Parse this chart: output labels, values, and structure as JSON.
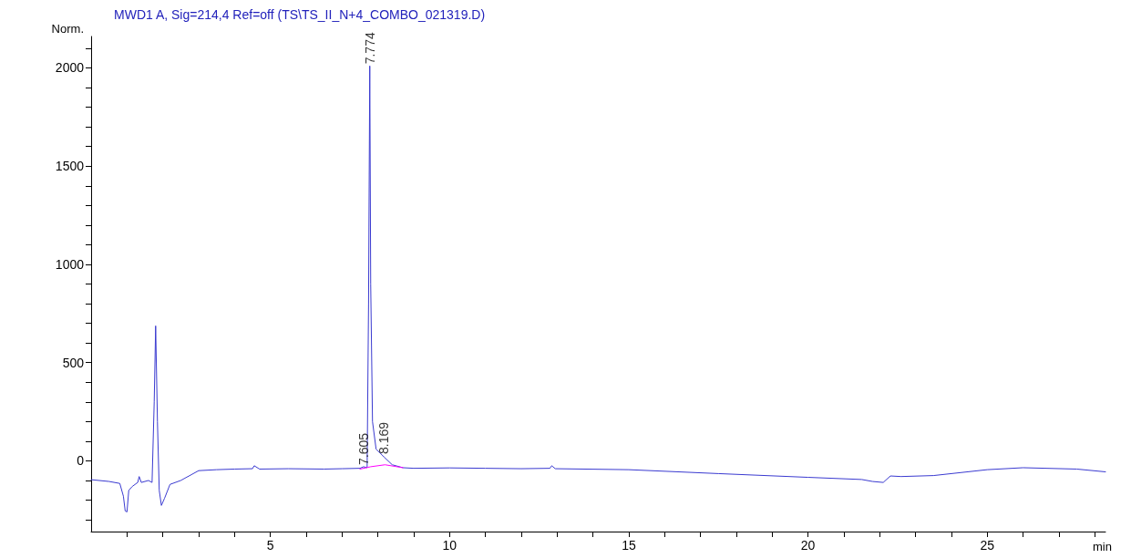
{
  "chart_data": {
    "type": "line",
    "title": "MWD1 A, Sig=214,4 Ref=off (TS\\TS_II_N+4_COMBO_021319.D)",
    "ylabel": "Norm.",
    "xlabel": "min",
    "xlim": [
      0,
      28.3
    ],
    "xticks": [
      {
        "value": 1,
        "label": null
      },
      {
        "value": 2,
        "label": null
      },
      {
        "value": 3,
        "label": null
      },
      {
        "value": 4,
        "label": null
      },
      5,
      {
        "value": 6,
        "label": null
      },
      {
        "value": 7,
        "label": null
      },
      {
        "value": 8,
        "label": null
      },
      {
        "value": 9,
        "label": null
      },
      10,
      {
        "value": 11,
        "label": null
      },
      {
        "value": 12,
        "label": null
      },
      {
        "value": 13,
        "label": null
      },
      {
        "value": 14,
        "label": null
      },
      15,
      {
        "value": 16,
        "label": null
      },
      {
        "value": 17,
        "label": null
      },
      {
        "value": 18,
        "label": null
      },
      {
        "value": 19,
        "label": null
      },
      20,
      {
        "value": 21,
        "label": null
      },
      {
        "value": 22,
        "label": null
      },
      {
        "value": 23,
        "label": null
      },
      {
        "value": 24,
        "label": null
      },
      25,
      {
        "value": 26,
        "label": null
      },
      {
        "value": 27,
        "label": null
      },
      {
        "value": 28,
        "label": null
      }
    ],
    "ylim": [
      -360,
      2160
    ],
    "yticks": [
      {
        "value": -300,
        "label": null
      },
      {
        "value": -200,
        "label": null
      },
      {
        "value": -100,
        "label": null
      },
      0,
      {
        "value": 100,
        "label": null
      },
      {
        "value": 200,
        "label": null
      },
      {
        "value": 300,
        "label": null
      },
      {
        "value": 400,
        "label": null
      },
      500,
      {
        "value": 600,
        "label": null
      },
      {
        "value": 700,
        "label": null
      },
      {
        "value": 800,
        "label": null
      },
      {
        "value": 900,
        "label": null
      },
      1000,
      {
        "value": 1100,
        "label": null
      },
      {
        "value": 1200,
        "label": null
      },
      {
        "value": 1300,
        "label": null
      },
      {
        "value": 1400,
        "label": null
      },
      1500,
      {
        "value": 1600,
        "label": null
      },
      {
        "value": 1700,
        "label": null
      },
      {
        "value": 1800,
        "label": null
      },
      {
        "value": 1900,
        "label": null
      },
      2000,
      {
        "value": 2100,
        "label": null
      }
    ],
    "grid": false,
    "marker": "none",
    "line_style": "solid",
    "series": [
      {
        "color": "#3a3ad0",
        "x": [
          0,
          0.5,
          0.8,
          0.9,
          0.95,
          1.0,
          1.05,
          1.15,
          1.3,
          1.34,
          1.4,
          1.6,
          1.7,
          1.76,
          1.8,
          1.85,
          1.9,
          1.96,
          2.05,
          2.2,
          2.5,
          3.0,
          3.5,
          4.0,
          4.5,
          4.55,
          4.7,
          5.5,
          6.5,
          7.0,
          7.5,
          7.6,
          7.7,
          7.74,
          7.774,
          7.8,
          7.85,
          7.95,
          8.169,
          8.4,
          8.7,
          9.0,
          10,
          11,
          12,
          12.8,
          12.85,
          12.95,
          15,
          17.5,
          20,
          21.5,
          21.8,
          22.1,
          22.3,
          22.6,
          23.5,
          25,
          26,
          27.5,
          28.3
        ],
        "values": [
          -96,
          -105,
          -115,
          -180,
          -255,
          -260,
          -150,
          -130,
          -110,
          -80,
          -110,
          -100,
          -110,
          300,
          687,
          200,
          -150,
          -227,
          -190,
          -120,
          -100,
          -50,
          -45,
          -42,
          -40,
          -25,
          -42,
          -40,
          -42,
          -40,
          -38,
          -30,
          -35,
          800,
          2010,
          900,
          200,
          60,
          20,
          -20,
          -35,
          -38,
          -36,
          -38,
          -40,
          -38,
          -25,
          -40,
          -45,
          -65,
          -84,
          -95,
          -105,
          -110,
          -77,
          -80,
          -75,
          -45,
          -35,
          -42,
          -56
        ]
      },
      {
        "color": "#ff00ff",
        "x": [
          7.5,
          7.8,
          8.2,
          8.7
        ],
        "values": [
          -42,
          -30,
          -20,
          -35
        ]
      }
    ],
    "annotations": [
      {
        "text": "7.774",
        "x": 7.774,
        "y": 2010
      },
      {
        "text": "7.605",
        "x": 7.605,
        "y": -30
      },
      {
        "text": "8.169",
        "x": 8.169,
        "y": 25
      }
    ]
  }
}
